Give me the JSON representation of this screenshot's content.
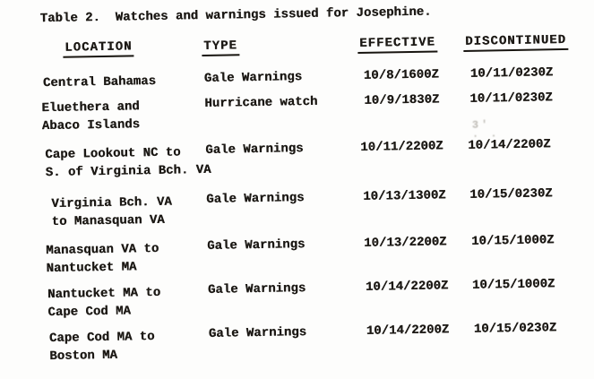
{
  "document": {
    "title": "Table 2.  Watches and warnings issued for Josephine.",
    "table": {
      "columns": [
        "LOCATION",
        "TYPE",
        "EFFECTIVE",
        "DISCONTINUED"
      ],
      "rows": [
        {
          "location": [
            "Central Bahamas"
          ],
          "type": "Gale Warnings",
          "effective": "10/8/1600Z",
          "discontinued": "10/11/0230Z"
        },
        {
          "location": [
            "Eluethera and",
            "Abaco Islands"
          ],
          "type": "Hurricane watch",
          "effective": "10/9/1830Z",
          "discontinued": "10/11/0230Z"
        },
        {
          "location": [
            "Cape Lookout NC to",
            "S. of Virginia Bch. VA"
          ],
          "type": "Gale Warnings",
          "effective": "10/11/2200Z",
          "discontinued": "10/14/2200Z"
        },
        {
          "location": [
            "Virginia Bch. VA",
            "to Manasquan VA"
          ],
          "type": "Gale Warnings",
          "effective": "10/13/1300Z",
          "discontinued": "10/15/0230Z"
        },
        {
          "location": [
            "Manasquan VA to",
            "Nantucket MA"
          ],
          "type": "Gale Warnings",
          "effective": "10/13/2200Z",
          "discontinued": "10/15/1000Z"
        },
        {
          "location": [
            "Nantucket MA to",
            "Cape Cod MA"
          ],
          "type": "Gale Warnings",
          "effective": "10/14/2200Z",
          "discontinued": "10/15/1000Z"
        },
        {
          "location": [
            "Cape Cod MA to",
            "Boston MA"
          ],
          "type": "Gale Warnings",
          "effective": "10/14/2200Z",
          "discontinued": "10/15/0230Z"
        }
      ]
    },
    "artifacts": {
      "smudge_mark": "3'\n. ."
    },
    "colors": {
      "ink": "#1c1915",
      "paper": "#fdfdfc"
    }
  }
}
